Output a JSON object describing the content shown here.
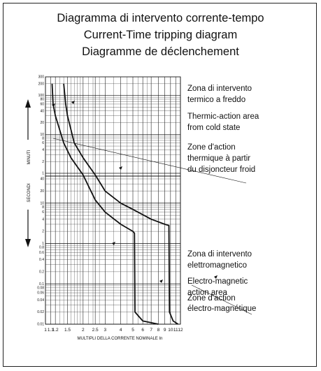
{
  "titles": {
    "line1": "Diagramma di intervento corrente-tempo",
    "line2": "Current-Time tripping diagram",
    "line3": "Diagramme de déclenchement"
  },
  "annotations": [
    "Zona di intervento",
    "termico a freddo",
    "Thermic-action area",
    "from cold state",
    "Zone d'action",
    "thermique à partir",
    "du disjoncteur froid",
    "Zona di intervento",
    "elettromagnetico",
    "Electro-magnetic",
    "action area",
    "Zone d'action",
    "électro-magnétique"
  ],
  "chart_data": {
    "type": "line",
    "title": "Diagramma di intervento corrente-tempo",
    "xlabel": "MULTIPLI DELLA CORRENTE NOMINALE In",
    "ylabel_minutes": "MINUTI",
    "ylabel_seconds": "SECONDI",
    "x_scale": "log",
    "x_range": [
      1,
      12
    ],
    "x_ticks": [
      "1",
      "1.1",
      "1.2",
      "1.5",
      "2",
      "2.5",
      "3",
      "4",
      "5",
      "6",
      "7",
      "8",
      "9",
      "10",
      "11",
      "12"
    ],
    "y_scale": "log",
    "y_ticks_minutes": [
      "300",
      "200",
      "100",
      "80",
      "60",
      "40",
      "20",
      "10",
      "8",
      "6",
      "4",
      "2",
      "1"
    ],
    "y_ticks_seconds": [
      "40",
      "20",
      "10",
      "8",
      "6",
      "4",
      "2",
      "1",
      "0.8",
      "0.6",
      "0.4",
      "0.2",
      "0.1",
      "0.08",
      "0.06",
      "0.04",
      "0.02",
      "0.01"
    ],
    "grid": true,
    "series": [
      {
        "name": "",
        "points": [
          [
            1.13,
            "200 min"
          ],
          [
            1.15,
            "60 min"
          ],
          [
            1.2,
            "30 min"
          ],
          [
            1.4,
            "6 min"
          ],
          [
            1.6,
            "2.5 min"
          ],
          [
            2,
            "50 s"
          ],
          [
            2.5,
            "12 s"
          ],
          [
            3,
            "6 s"
          ],
          [
            4,
            "3 s"
          ],
          [
            5,
            "2 s"
          ],
          [
            5.15,
            "1.8 s"
          ],
          [
            5.2,
            "0.02 s"
          ],
          [
            6,
            "0.012 s"
          ],
          [
            8,
            "0.01 s"
          ]
        ]
      },
      {
        "name": "",
        "points": [
          [
            1.4,
            "200 min"
          ],
          [
            1.45,
            "60 min"
          ],
          [
            1.5,
            "30 min"
          ],
          [
            1.7,
            "6 min"
          ],
          [
            2,
            "2.5 min"
          ],
          [
            2.5,
            "50 s"
          ],
          [
            3,
            "20 s"
          ],
          [
            4,
            "10 s"
          ],
          [
            5,
            "7 s"
          ],
          [
            7,
            "4 s"
          ],
          [
            9,
            "3 s"
          ],
          [
            9.7,
            "2.8 s"
          ],
          [
            9.8,
            "0.02 s"
          ],
          [
            10.5,
            "0.012 s"
          ],
          [
            11.5,
            "0.01 s"
          ]
        ]
      }
    ]
  }
}
